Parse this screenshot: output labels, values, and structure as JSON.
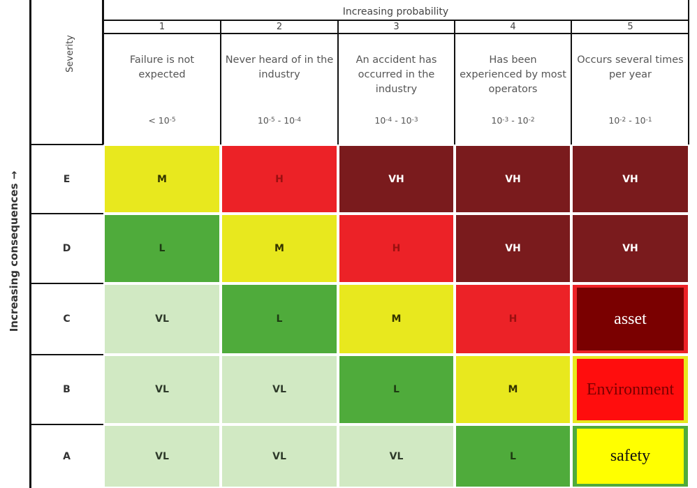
{
  "axis_labels": {
    "probability": "Increasing probability",
    "consequences": "Increasing consequences →"
  },
  "severity_header": "Severity",
  "columns": [
    {
      "number": "1",
      "description": "Failure is not expected",
      "frequency": [
        {
          "text": "< 10"
        },
        {
          "sup": "-5"
        }
      ]
    },
    {
      "number": "2",
      "description": "Never heard of in the industry",
      "frequency": [
        {
          "text": "10"
        },
        {
          "sup": "-5"
        },
        {
          "text": " - 10"
        },
        {
          "sup": "-4"
        }
      ]
    },
    {
      "number": "3",
      "description": "An accident has occurred in the industry",
      "frequency": [
        {
          "text": "10"
        },
        {
          "sup": "-4"
        },
        {
          "text": " - 10"
        },
        {
          "sup": "-3"
        }
      ]
    },
    {
      "number": "4",
      "description": "Has been experienced by most operators",
      "frequency": [
        {
          "text": "10"
        },
        {
          "sup": "-3"
        },
        {
          "text": " - 10"
        },
        {
          "sup": "-2"
        }
      ]
    },
    {
      "number": "5",
      "description": "Occurs several times per year",
      "frequency": [
        {
          "text": "10"
        },
        {
          "sup": "-2"
        },
        {
          "text": " - 10"
        },
        {
          "sup": "-1"
        }
      ]
    }
  ],
  "rows": [
    {
      "severity": "E",
      "cells": [
        "M",
        "H",
        "VH",
        "VH",
        "VH"
      ]
    },
    {
      "severity": "D",
      "cells": [
        "L",
        "M",
        "H",
        "VH",
        "VH"
      ]
    },
    {
      "severity": "C",
      "cells": [
        "VL",
        "L",
        "M",
        "H",
        {
          "text": "asset",
          "color": "#7a0000",
          "text_color": "#ffffff"
        }
      ]
    },
    {
      "severity": "B",
      "cells": [
        "VL",
        "VL",
        "L",
        "M",
        {
          "text": "Environment",
          "color": "#ff0d0d",
          "text_color": "#7a0000"
        }
      ]
    },
    {
      "severity": "A",
      "cells": [
        "VL",
        "VL",
        "VL",
        "L",
        {
          "text": "safety",
          "color": "#ffff00",
          "text_color": "#111111"
        }
      ]
    }
  ],
  "rating_colors": {
    "VH": "#7a1b1d",
    "H": "#ec2227",
    "M": "#e8e81e",
    "L": "#4fab3b",
    "VL": "#d1e9c3"
  },
  "rating_text_colors": {
    "VH": "#ffffff",
    "H": "#9b1010",
    "M": "#333300",
    "L": "#1d3a12",
    "VL": "#2e3a2a"
  }
}
